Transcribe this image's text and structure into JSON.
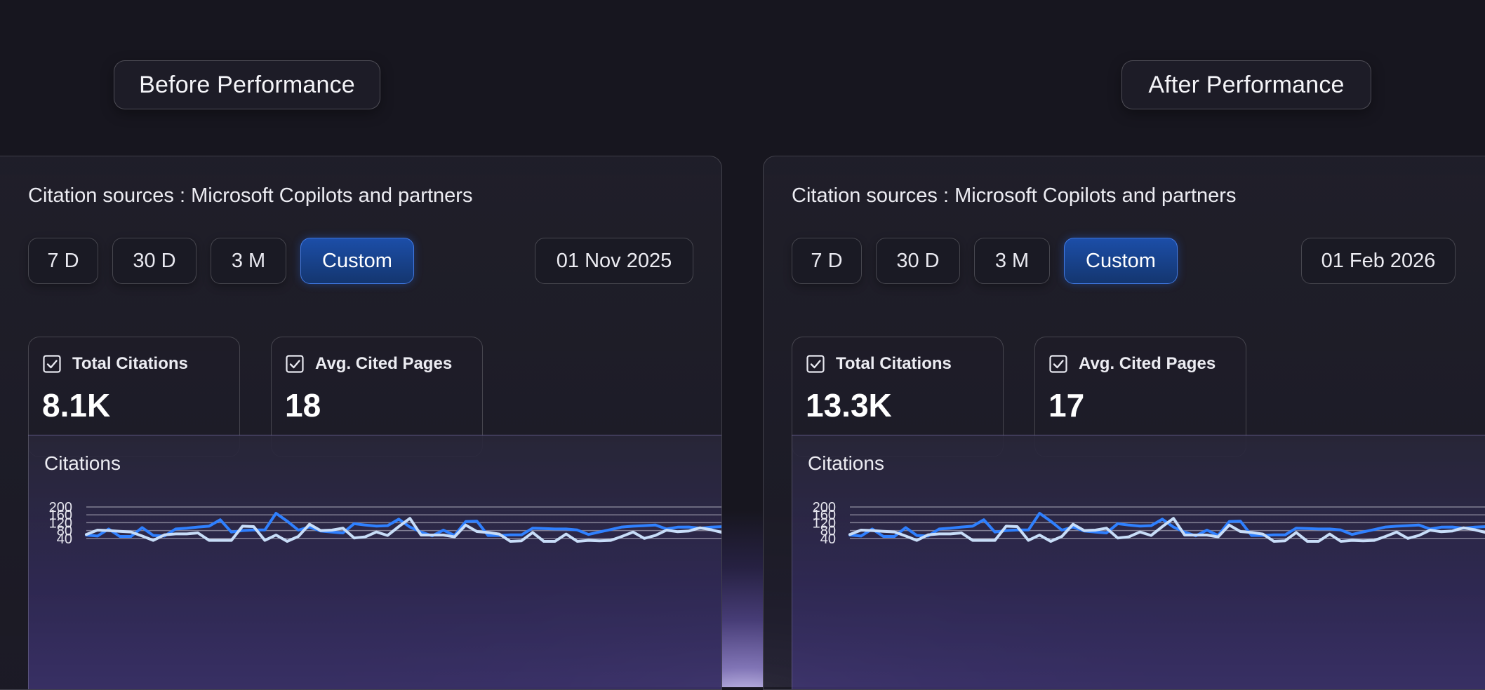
{
  "before": {
    "heading": "Before Performance",
    "title": "Citation sources : Microsoft Copilots and partners",
    "ranges": [
      "7 D",
      "30 D",
      "3 M",
      "Custom"
    ],
    "active_range": "Custom",
    "date": "01 Nov 2025",
    "metrics": [
      {
        "label": "Total Citations",
        "value": "8.1K",
        "icon": "checkbox-checked-icon"
      },
      {
        "label": "Avg. Cited Pages",
        "value": "18",
        "icon": "checkbox-checked-icon"
      }
    ]
  },
  "after": {
    "heading": "After Performance",
    "title": "Citation sources : Microsoft Copilots and partners",
    "ranges": [
      "7 D",
      "30 D",
      "3 M",
      "Custom"
    ],
    "active_range": "Custom",
    "date": "01 Feb 2026",
    "metrics": [
      {
        "label": "Total Citations",
        "value": "13.3K",
        "icon": "checkbox-checked-icon"
      },
      {
        "label": "Avg. Cited Pages",
        "value": "17",
        "icon": "checkbox-checked-icon"
      }
    ]
  },
  "colors": {
    "background": "#17161f",
    "accent_blue": "#2f80ff",
    "line_light": "#c8ddf8",
    "active_button": "#1c4ea8",
    "glow": "#8f7fe0"
  },
  "chart_data": [
    {
      "type": "line",
      "title": "Citations",
      "ylim": [
        0,
        200
      ],
      "yticks": [
        40,
        80,
        120,
        160,
        200
      ],
      "grid": true,
      "x": [
        1,
        2,
        3,
        4,
        5,
        6,
        7,
        8,
        9,
        10,
        11,
        12,
        13,
        14,
        15,
        16,
        17,
        18,
        19,
        20,
        21,
        22,
        23,
        24,
        25,
        26,
        27,
        28,
        29,
        30,
        31,
        32,
        33,
        34,
        35,
        36,
        37,
        38,
        39,
        40,
        41,
        42,
        43,
        44,
        45,
        46,
        47,
        48,
        49,
        50,
        51,
        52,
        53,
        54,
        55,
        56,
        57,
        58,
        59,
        60,
        61,
        62,
        63,
        64
      ],
      "series": [
        {
          "values": [
            57,
            52,
            88,
            50,
            50,
            95,
            55,
            52,
            88,
            92,
            98,
            102,
            135,
            72,
            80,
            83,
            83,
            168,
            128,
            82,
            98,
            78,
            72,
            68,
            115,
            108,
            103,
            105,
            138,
            98,
            72,
            53,
            82,
            55,
            126,
            128,
            55,
            55,
            58,
            58,
            92,
            90,
            88,
            88,
            83,
            60,
            73,
            85,
            98,
            102,
            105,
            108,
            88,
            97,
            98,
            92,
            97,
            100,
            98,
            96,
            99,
            101,
            98,
            97
          ],
          "color": "#2f80ff"
        },
        {
          "values": [
            60,
            82,
            80,
            76,
            73,
            52,
            30,
            58,
            63,
            63,
            68,
            30,
            30,
            30,
            102,
            100,
            30,
            57,
            25,
            50,
            112,
            80,
            82,
            92,
            42,
            48,
            73,
            55,
            100,
            142,
            57,
            57,
            57,
            48,
            108,
            75,
            70,
            62,
            25,
            28,
            70,
            25,
            25,
            62,
            25,
            30,
            28,
            30,
            50,
            72,
            40,
            55,
            82,
            74,
            78,
            94,
            84,
            70,
            60,
            58,
            55,
            62,
            66,
            70
          ],
          "color": "#c8ddf8"
        }
      ]
    },
    {
      "type": "line",
      "title": "Citations",
      "ylim": [
        0,
        200
      ],
      "yticks": [
        40,
        80,
        120,
        160,
        200
      ],
      "grid": true,
      "x": [
        1,
        2,
        3,
        4,
        5,
        6,
        7,
        8,
        9,
        10,
        11,
        12,
        13,
        14,
        15,
        16,
        17,
        18,
        19,
        20,
        21,
        22,
        23,
        24,
        25,
        26,
        27,
        28,
        29,
        30,
        31,
        32,
        33,
        34,
        35,
        36,
        37,
        38,
        39,
        40,
        41,
        42,
        43,
        44,
        45,
        46,
        47,
        48,
        49,
        50,
        51,
        52,
        53,
        54,
        55,
        56,
        57,
        58,
        59,
        60,
        61,
        62,
        63,
        64
      ],
      "series": [
        {
          "values": [
            57,
            52,
            88,
            50,
            50,
            95,
            55,
            52,
            88,
            92,
            98,
            102,
            135,
            72,
            80,
            83,
            83,
            168,
            128,
            82,
            98,
            78,
            72,
            68,
            115,
            108,
            103,
            105,
            138,
            98,
            72,
            53,
            82,
            55,
            126,
            128,
            55,
            55,
            58,
            58,
            92,
            90,
            88,
            88,
            83,
            60,
            73,
            85,
            98,
            102,
            105,
            108,
            88,
            97,
            98,
            92,
            97,
            100,
            98,
            96,
            99,
            101,
            98,
            97
          ],
          "color": "#2f80ff"
        },
        {
          "values": [
            60,
            82,
            80,
            76,
            73,
            52,
            30,
            58,
            63,
            63,
            68,
            30,
            30,
            30,
            102,
            100,
            30,
            57,
            25,
            50,
            112,
            80,
            82,
            92,
            42,
            48,
            73,
            55,
            100,
            142,
            57,
            57,
            57,
            48,
            108,
            75,
            70,
            62,
            25,
            28,
            70,
            25,
            25,
            62,
            25,
            30,
            28,
            30,
            50,
            72,
            40,
            55,
            82,
            74,
            78,
            94,
            84,
            70,
            60,
            58,
            55,
            62,
            66,
            70
          ],
          "color": "#c8ddf8"
        }
      ]
    }
  ]
}
